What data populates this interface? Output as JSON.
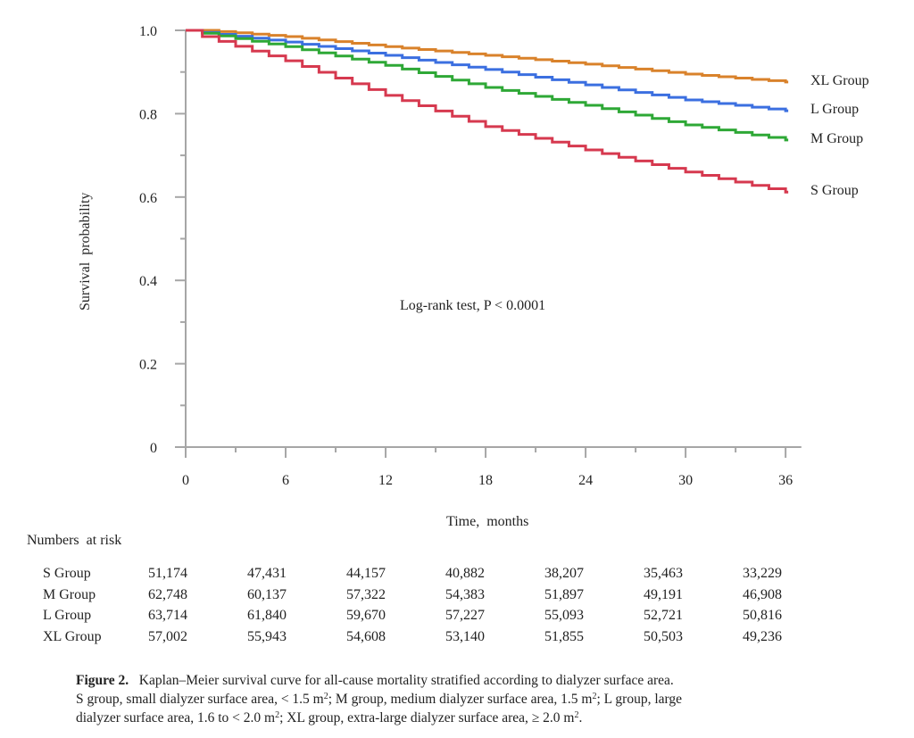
{
  "chart_data": {
    "type": "line",
    "subtype": "kaplan-meier-step",
    "title": "",
    "xlabel": "Time,  months",
    "ylabel": "Survival  probability",
    "xlim": [
      0,
      37
    ],
    "ylim": [
      0,
      1.0
    ],
    "x_ticks": [
      0,
      6,
      12,
      18,
      24,
      30,
      36
    ],
    "x_tick_labels": [
      "0",
      "6",
      "12",
      "18",
      "24",
      "30",
      "36"
    ],
    "x_minor_ticks": [
      3,
      9,
      15,
      21,
      27,
      33
    ],
    "y_ticks": [
      0,
      0.2,
      0.4,
      0.6,
      0.8,
      1.0
    ],
    "y_tick_labels": [
      "0",
      "0.2",
      "0.4",
      "0.6",
      "0.8",
      "1.0"
    ],
    "y_minor_ticks": [
      0.1,
      0.3,
      0.5,
      0.7,
      0.9
    ],
    "grid": false,
    "legend_placement": "right (labels at curve ends)",
    "annotation": "Log-rank test, P < 0.0001",
    "x": [
      0,
      1,
      6,
      12,
      18,
      24,
      30,
      36
    ],
    "series": [
      {
        "name": "XL Group",
        "color": "#d9822b",
        "values": [
          1.0,
          1.0,
          0.985,
          0.961,
          0.94,
          0.919,
          0.895,
          0.876
        ]
      },
      {
        "name": "L Group",
        "color": "#3b6fe0",
        "values": [
          1.0,
          0.995,
          0.972,
          0.94,
          0.906,
          0.869,
          0.833,
          0.807
        ]
      },
      {
        "name": "M Group",
        "color": "#2ea836",
        "values": [
          1.0,
          0.993,
          0.961,
          0.916,
          0.863,
          0.82,
          0.773,
          0.737
        ]
      },
      {
        "name": "S Group",
        "color": "#d6394f",
        "values": [
          1.0,
          0.985,
          0.927,
          0.844,
          0.769,
          0.713,
          0.66,
          0.612
        ]
      }
    ]
  },
  "numbers_at_risk": {
    "title": "Numbers  at risk",
    "time_points": [
      0,
      6,
      12,
      18,
      24,
      30,
      36
    ],
    "rows": [
      {
        "group": "S Group",
        "values": [
          "51,174",
          "47,431",
          "44,157",
          "40,882",
          "38,207",
          "35,463",
          "33,229"
        ]
      },
      {
        "group": "M Group",
        "values": [
          "62,748",
          "60,137",
          "57,322",
          "54,383",
          "51,897",
          "49,191",
          "46,908"
        ]
      },
      {
        "group": "L Group",
        "values": [
          "63,714",
          "61,840",
          "59,670",
          "57,227",
          "55,093",
          "52,721",
          "50,816"
        ]
      },
      {
        "group": "XL Group",
        "values": [
          "57,002",
          "55,943",
          "54,608",
          "53,140",
          "51,855",
          "50,503",
          "49,236"
        ]
      }
    ]
  },
  "caption": {
    "label": "Figure 2.",
    "line1": "Kaplan–Meier survival curve for all-cause mortality stratified according to dialyzer surface area.",
    "line2a": "S group, small dialyzer surface area, < 1.5 m",
    "line2b": "; M group, medium dialyzer surface area, 1.5 m",
    "line2c": "; L group, large",
    "line3a": "dialyzer surface area, 1.6 to < 2.0 m",
    "line3b": "; XL group, extra-large dialyzer surface area, ≥ 2.0 m",
    "line3c": ".",
    "sup": "2"
  }
}
